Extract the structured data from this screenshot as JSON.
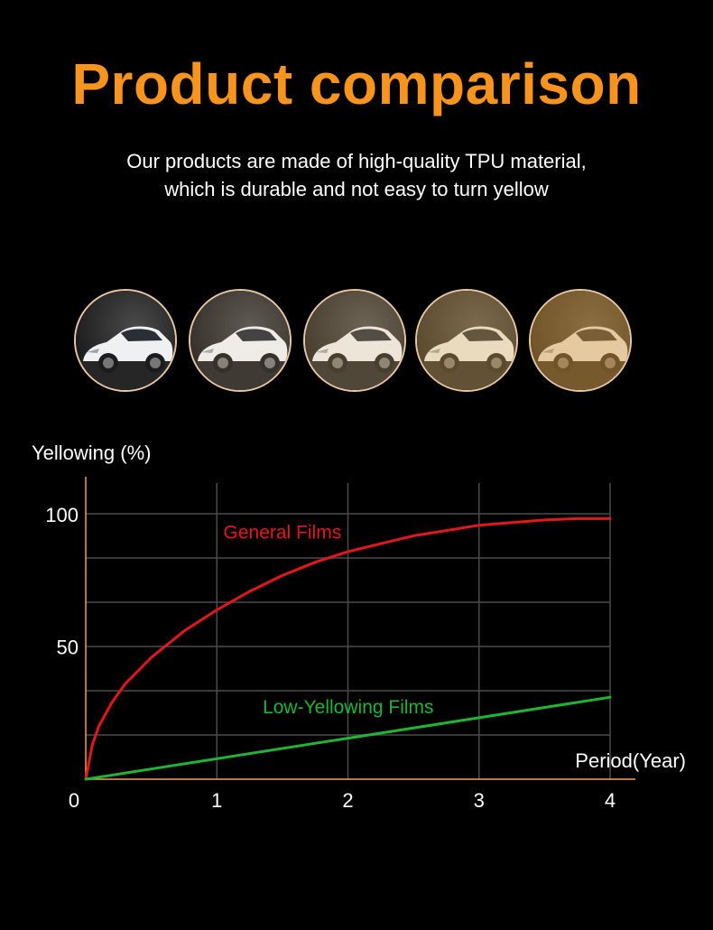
{
  "header": {
    "title": "Product comparison",
    "subtitle_lines": [
      "Our products are made of high-quality TPU material,",
      "which is durable and not easy to turn yellow"
    ]
  },
  "thumbnails": {
    "items": [
      {
        "name": "car-photo-clear",
        "tint": "#ffffff",
        "tint_opacity": 0.0
      },
      {
        "name": "car-photo-slight-yellow",
        "tint": "#f3d9a0",
        "tint_opacity": 0.12
      },
      {
        "name": "car-photo-light-yellow",
        "tint": "#e9c17a",
        "tint_opacity": 0.22
      },
      {
        "name": "car-photo-yellow",
        "tint": "#e2ad55",
        "tint_opacity": 0.32
      },
      {
        "name": "car-photo-deep-yellow",
        "tint": "#d99b3a",
        "tint_opacity": 0.45
      }
    ],
    "border_color": "#e8c7a5"
  },
  "chart_data": {
    "type": "line",
    "title": "",
    "xlabel": "Period(Year)",
    "ylabel": "Yellowing (%)",
    "xlim": [
      0,
      4
    ],
    "ylim": [
      0,
      100
    ],
    "x_ticks": [
      0,
      1,
      2,
      3,
      4
    ],
    "y_ticks": [
      50,
      100
    ],
    "grid": true,
    "axis_color": "#f0a060",
    "grid_color": "#4a4a4a",
    "series": [
      {
        "name": "General Films",
        "color": "#e0181e",
        "x": [
          0,
          0.05,
          0.1,
          0.2,
          0.3,
          0.5,
          0.75,
          1,
          1.25,
          1.5,
          1.75,
          2,
          2.25,
          2.5,
          2.75,
          3,
          3.25,
          3.5,
          3.75,
          4
        ],
        "y": [
          0,
          13,
          20,
          29,
          36,
          46,
          56,
          64,
          71,
          77,
          82,
          86,
          89,
          92,
          94,
          96,
          97,
          98,
          98.5,
          98.5
        ]
      },
      {
        "name": "Low-Yellowing Films",
        "color": "#1fb534",
        "x": [
          0,
          4
        ],
        "y": [
          0,
          31
        ]
      }
    ],
    "series_labels": [
      {
        "text": "General Films",
        "at_x": 1.05,
        "at_y": 91
      },
      {
        "text": "Low-Yellowing Films",
        "at_x": 1.35,
        "at_y": 25
      }
    ]
  }
}
